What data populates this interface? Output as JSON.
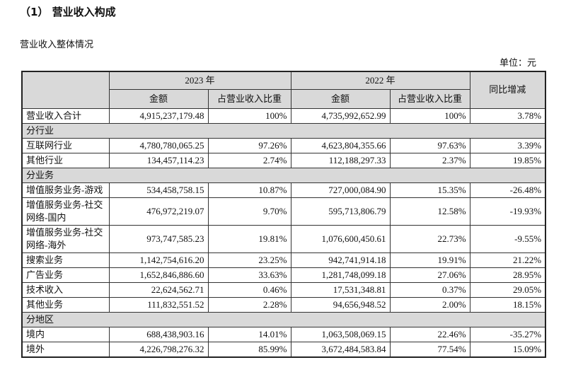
{
  "header": {
    "title": "（1） 营业收入构成",
    "subtitle": "营业收入整体情况",
    "unit": "单位：元"
  },
  "table": {
    "year_groups": [
      "2023 年",
      "2022 年"
    ],
    "sub_columns": [
      "金额",
      "占营业收入比重",
      "金额",
      "占营业收入比重"
    ],
    "yoy": "同比增减",
    "rows": [
      [
        "营业收入合计",
        "4,915,237,179.48",
        "100%",
        "4,735,992,652.99",
        "100%",
        "3.78%"
      ],
      [
        "分行业"
      ],
      [
        "互联网行业",
        "4,780,780,065.25",
        "97.26%",
        "4,623,804,355.66",
        "97.63%",
        "3.39%"
      ],
      [
        "其他行业",
        "134,457,114.23",
        "2.74%",
        "112,188,297.33",
        "2.37%",
        "19.85%"
      ],
      [
        "分业务"
      ],
      [
        "增值服务业务-游戏",
        "534,458,758.15",
        "10.87%",
        "727,000,084.90",
        "15.35%",
        "-26.48%"
      ],
      [
        "增值服务业务-社交网络-国内",
        "476,972,219.07",
        "9.70%",
        "595,713,806.79",
        "12.58%",
        "-19.93%"
      ],
      [
        "增值服务业务-社交网络-海外",
        "973,747,585.23",
        "19.81%",
        "1,076,600,450.61",
        "22.73%",
        "-9.55%"
      ],
      [
        "搜索业务",
        "1,142,754,616.20",
        "23.25%",
        "942,741,914.18",
        "19.91%",
        "21.22%"
      ],
      [
        "广告业务",
        "1,652,846,886.60",
        "33.63%",
        "1,281,748,099.18",
        "27.06%",
        "28.95%"
      ],
      [
        "技术收入",
        "22,624,562.71",
        "0.46%",
        "17,531,348.81",
        "0.37%",
        "29.05%"
      ],
      [
        "其他业务",
        "111,832,551.52",
        "2.28%",
        "94,656,948.52",
        "2.00%",
        "18.15%"
      ],
      [
        "分地区"
      ],
      [
        "境内",
        "688,438,903.16",
        "14.01%",
        "1,063,508,069.15",
        "22.46%",
        "-35.27%"
      ],
      [
        "境外",
        "4,226,798,276.32",
        "85.99%",
        "3,672,484,583.84",
        "77.54%",
        "15.09%"
      ]
    ]
  }
}
